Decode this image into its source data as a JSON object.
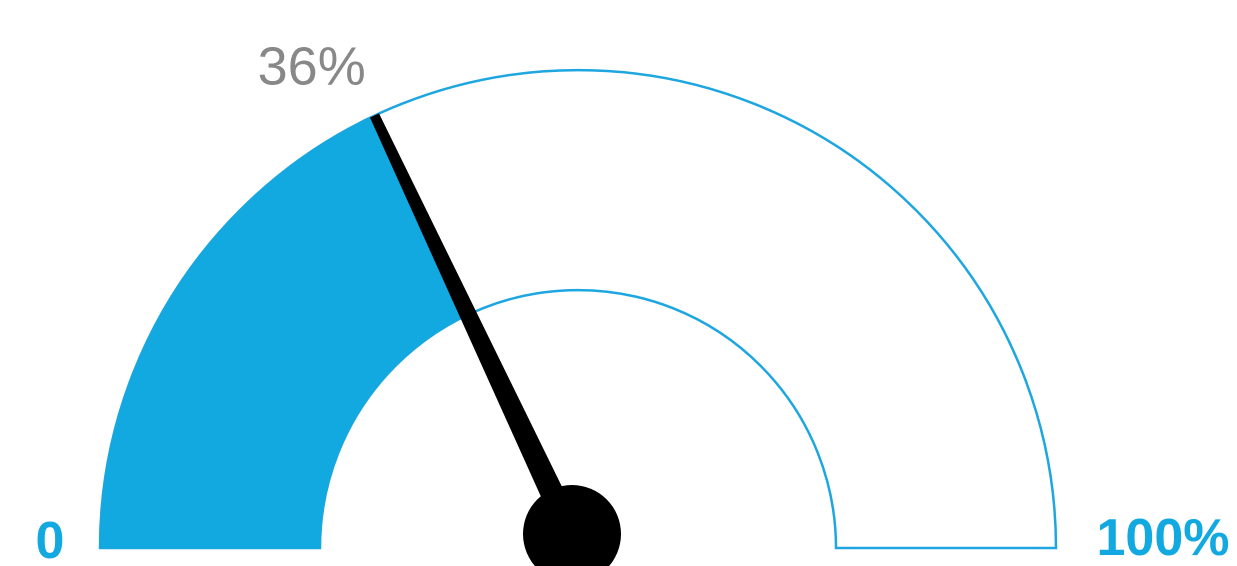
{
  "chart_data": {
    "type": "gauge",
    "value": 36,
    "min": 0,
    "max": 100,
    "value_label": "36%",
    "min_label": "0",
    "max_label": "100%"
  },
  "colors": {
    "fill": "#12A8E0",
    "outline": "#1DA6DF",
    "needle": "#000000",
    "value_text": "#888888",
    "range_text": "#12A8E0"
  }
}
